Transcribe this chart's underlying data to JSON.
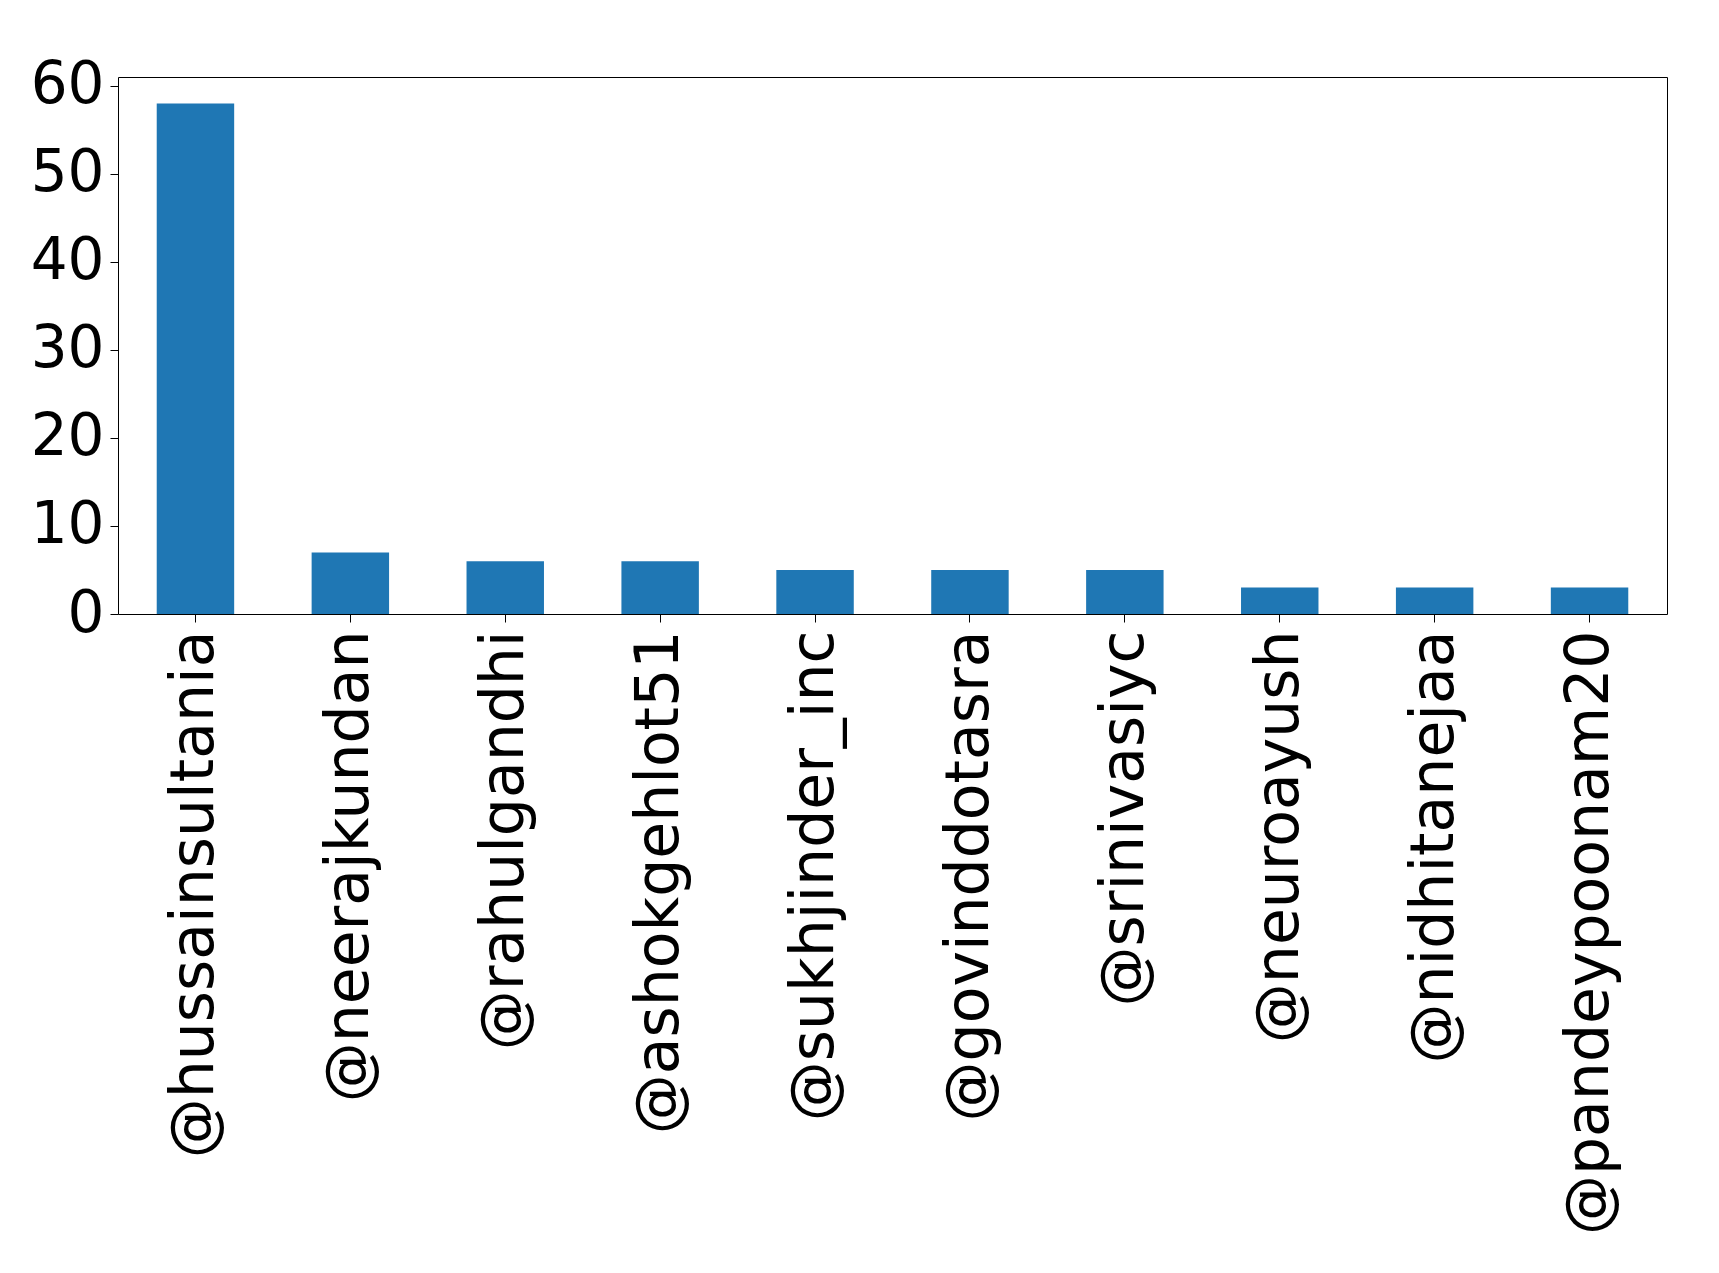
{
  "chart_data": {
    "type": "bar",
    "categories": [
      "@hussainsultania",
      "@neerajkundan",
      "@rahulgandhi",
      "@ashokgehlot51",
      "@sukhjinder_inc",
      "@govinddotasra",
      "@srinivasiyc",
      "@neuroayush",
      "@nidhitanejaa",
      "@pandeypoonam20"
    ],
    "values": [
      58,
      7,
      6,
      6,
      5,
      5,
      5,
      3,
      3,
      3
    ],
    "color": "#1f77b4",
    "ylim": [
      0,
      61
    ],
    "yticks": [
      0,
      10,
      20,
      30,
      40,
      50,
      60
    ],
    "grid": false
  }
}
